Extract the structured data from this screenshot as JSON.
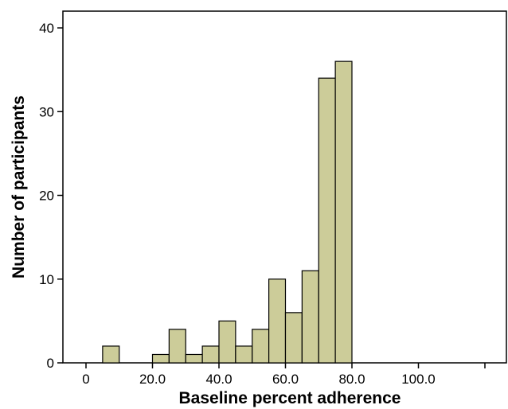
{
  "chart_data": {
    "type": "bar",
    "subtype": "histogram",
    "title": "",
    "xlabel": "Baseline percent adherence",
    "ylabel": "Number of participants",
    "xlim": [
      -5,
      125
    ],
    "ylim": [
      0,
      42
    ],
    "xticks": [
      0,
      20,
      40,
      60,
      80,
      100,
      120
    ],
    "xtick_labels": [
      "0",
      "20.0",
      "40.0",
      "60.0",
      "80.0",
      "100.0",
      ""
    ],
    "yticks": [
      0,
      10,
      20,
      30,
      40
    ],
    "ytick_labels": [
      "0",
      "10",
      "20",
      "30",
      "40"
    ],
    "bar_color": "#cccc99",
    "bar_edge_color": "#000000",
    "grid": false,
    "legend": "none",
    "bins": [
      {
        "x0": 5,
        "x1": 10,
        "value": 2
      },
      {
        "x0": 20,
        "x1": 25,
        "value": 1
      },
      {
        "x0": 25,
        "x1": 30,
        "value": 4
      },
      {
        "x0": 30,
        "x1": 35,
        "value": 1
      },
      {
        "x0": 35,
        "x1": 40,
        "value": 2
      },
      {
        "x0": 40,
        "x1": 45,
        "value": 5
      },
      {
        "x0": 45,
        "x1": 50,
        "value": 2
      },
      {
        "x0": 50,
        "x1": 55,
        "value": 4
      },
      {
        "x0": 55,
        "x1": 60,
        "value": 10
      },
      {
        "x0": 60,
        "x1": 65,
        "value": 6
      },
      {
        "x0": 65,
        "x1": 70,
        "value": 11
      },
      {
        "x0": 70,
        "x1": 75,
        "value": 34
      },
      {
        "x0": 75,
        "x1": 80,
        "value": 36
      }
    ]
  }
}
